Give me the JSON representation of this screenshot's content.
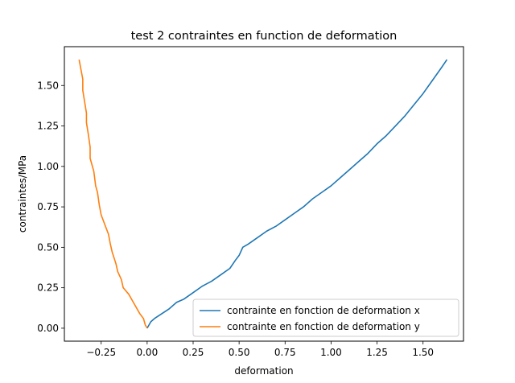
{
  "chart_data": {
    "type": "line",
    "title": "test 2 contraintes en function de deformation",
    "xlabel": "deformation",
    "ylabel": "contraintes/MPa",
    "xlim": [
      -0.45,
      1.72
    ],
    "ylim": [
      -0.08,
      1.74
    ],
    "xticks": [
      -0.25,
      0.0,
      0.25,
      0.5,
      0.75,
      1.0,
      1.25,
      1.5
    ],
    "xtick_labels": [
      "−0.25",
      "0.00",
      "0.25",
      "0.50",
      "0.75",
      "1.00",
      "1.25",
      "1.50"
    ],
    "yticks": [
      0.0,
      0.25,
      0.5,
      0.75,
      1.0,
      1.25,
      1.5
    ],
    "ytick_labels": [
      "0.00",
      "0.25",
      "0.50",
      "0.75",
      "1.00",
      "1.25",
      "1.50"
    ],
    "grid": false,
    "legend_position": "lower-right",
    "series": [
      {
        "name": "contrainte en fonction de deformation x",
        "color": "#1f77b4",
        "x": [
          0.0,
          0.02,
          0.04,
          0.08,
          0.12,
          0.16,
          0.2,
          0.25,
          0.3,
          0.35,
          0.4,
          0.45,
          0.48,
          0.5,
          0.52,
          0.55,
          0.6,
          0.65,
          0.7,
          0.75,
          0.8,
          0.85,
          0.9,
          0.95,
          1.0,
          1.05,
          1.1,
          1.15,
          1.2,
          1.25,
          1.3,
          1.35,
          1.4,
          1.45,
          1.5,
          1.55,
          1.6,
          1.63
        ],
        "y": [
          0.0,
          0.04,
          0.06,
          0.09,
          0.12,
          0.16,
          0.18,
          0.22,
          0.26,
          0.29,
          0.33,
          0.37,
          0.42,
          0.45,
          0.5,
          0.52,
          0.56,
          0.6,
          0.63,
          0.67,
          0.71,
          0.75,
          0.8,
          0.84,
          0.88,
          0.93,
          0.98,
          1.03,
          1.08,
          1.14,
          1.19,
          1.25,
          1.31,
          1.38,
          1.45,
          1.53,
          1.61,
          1.66
        ]
      },
      {
        "name": "contrainte en fonction de deformation y",
        "color": "#ff7f0e",
        "x": [
          0.0,
          -0.01,
          -0.02,
          -0.04,
          -0.06,
          -0.08,
          -0.1,
          -0.13,
          -0.14,
          -0.16,
          -0.17,
          -0.19,
          -0.2,
          -0.21,
          -0.23,
          -0.25,
          -0.26,
          -0.27,
          -0.28,
          -0.29,
          -0.31,
          -0.31,
          -0.32,
          -0.33,
          -0.33,
          -0.34,
          -0.35,
          -0.35,
          -0.36,
          -0.37
        ],
        "y": [
          0.0,
          0.02,
          0.06,
          0.09,
          0.13,
          0.17,
          0.21,
          0.25,
          0.3,
          0.35,
          0.4,
          0.47,
          0.52,
          0.58,
          0.64,
          0.7,
          0.76,
          0.84,
          0.88,
          0.97,
          1.05,
          1.12,
          1.2,
          1.27,
          1.33,
          1.4,
          1.47,
          1.54,
          1.6,
          1.66
        ]
      }
    ]
  }
}
